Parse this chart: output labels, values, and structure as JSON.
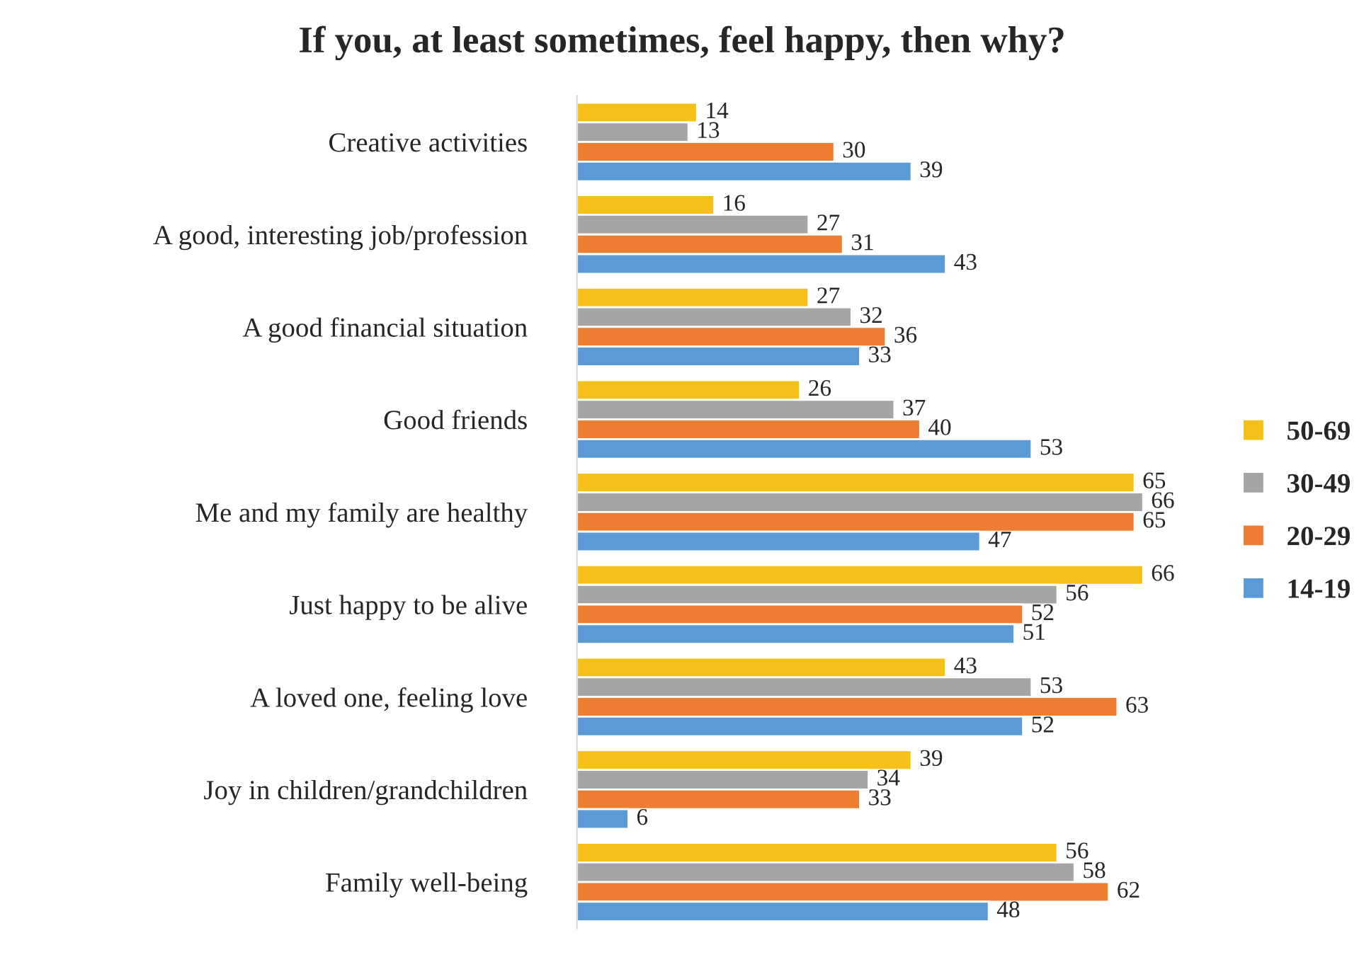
{
  "chart_data": {
    "type": "bar",
    "orientation": "horizontal",
    "title": "If you, at least sometimes, feel happy, then why?",
    "categories": [
      "Creative activities",
      "A good, interesting job/profession",
      "A good financial situation",
      "Good friends",
      "Me and my family are healthy",
      "Just happy to be alive",
      "A loved one, feeling love",
      "Joy in children/grandchildren",
      "Family well-being"
    ],
    "series": [
      {
        "name": "50-69",
        "color": "#f5c017",
        "values": [
          14,
          16,
          27,
          26,
          65,
          66,
          43,
          39,
          56
        ]
      },
      {
        "name": "30-49",
        "color": "#a5a5a5",
        "values": [
          13,
          27,
          32,
          37,
          66,
          56,
          53,
          34,
          58
        ]
      },
      {
        "name": "20-29",
        "color": "#ed7d31",
        "values": [
          30,
          31,
          36,
          40,
          65,
          52,
          63,
          33,
          62
        ]
      },
      {
        "name": "14-19",
        "color": "#5b9bd5",
        "values": [
          39,
          43,
          33,
          53,
          47,
          51,
          52,
          6,
          48
        ]
      }
    ],
    "data_labels": true,
    "legend": "right",
    "marker": "square",
    "grid": false
  }
}
